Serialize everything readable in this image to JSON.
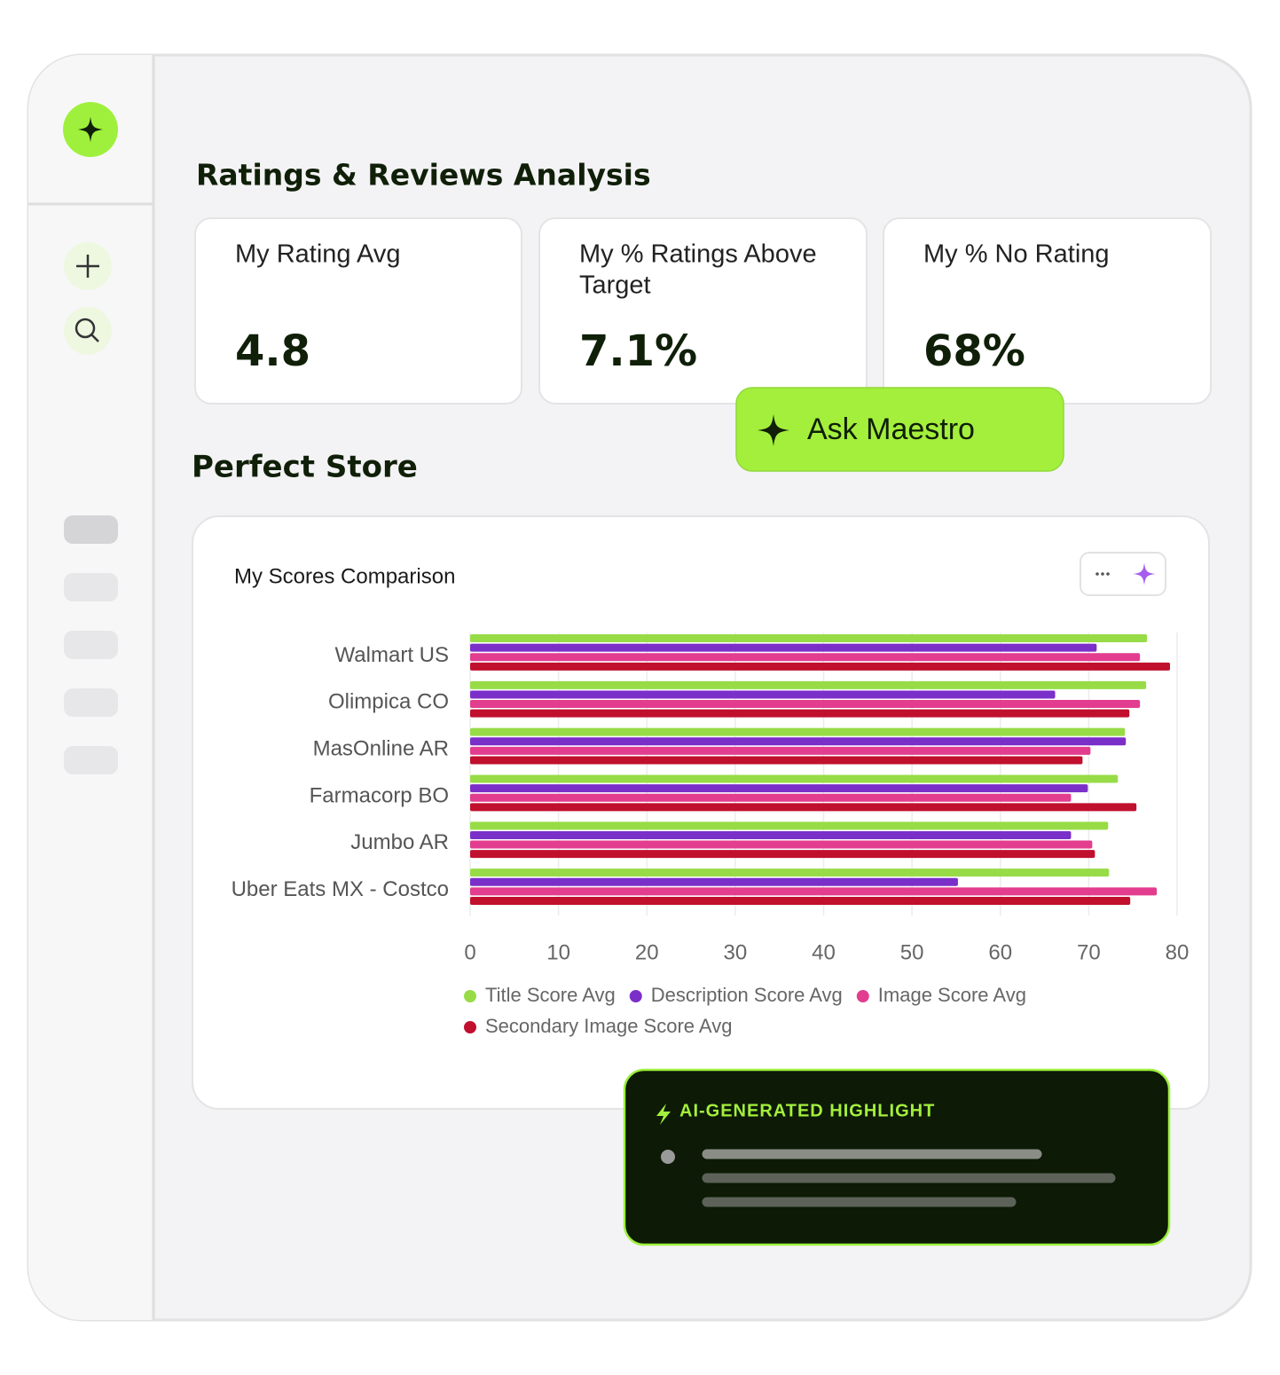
{
  "header": {
    "title": "Ratings & Reviews Analysis"
  },
  "kpis": [
    {
      "label": [
        "My Rating Avg"
      ],
      "value": "4.8"
    },
    {
      "label": [
        "My % Ratings Above",
        "Target"
      ],
      "value": "7.1%"
    },
    {
      "label": [
        "My % No Rating"
      ],
      "value": "68%"
    }
  ],
  "button": {
    "label": "Ask Maestro"
  },
  "section": {
    "title": "Perfect Store"
  },
  "chart_data": {
    "type": "bar",
    "orientation": "horizontal",
    "title": "My Scores Comparison",
    "categories": [
      "Walmart US",
      "Olimpica CO",
      "MasOnline AR",
      "Farmacorp BO",
      "Jumbo AR",
      "Uber Eats MX - Costco"
    ],
    "series": [
      {
        "name": "Title Score Avg",
        "color": "#97dc47",
        "values": [
          76.6,
          76.5,
          74.1,
          73.3,
          72.2,
          72.3
        ]
      },
      {
        "name": "Description Score Avg",
        "color": "#7b2fc9",
        "values": [
          70.9,
          66.2,
          74.2,
          69.9,
          68.0,
          55.2
        ]
      },
      {
        "name": "Image Score Avg",
        "color": "#e23d8f",
        "values": [
          75.8,
          75.8,
          70.2,
          68.0,
          70.4,
          77.7
        ]
      },
      {
        "name": "Secondary Image Score Avg",
        "color": "#c0102e",
        "values": [
          79.2,
          74.6,
          69.3,
          75.4,
          70.7,
          74.7
        ]
      }
    ],
    "xlim": [
      0,
      80
    ],
    "xticks": [
      0,
      10,
      20,
      30,
      40,
      50,
      60,
      70,
      80
    ],
    "grid": true,
    "legend": "bottom"
  },
  "highlight": {
    "title": "AI-GENERATED HIGHLIGHT"
  }
}
